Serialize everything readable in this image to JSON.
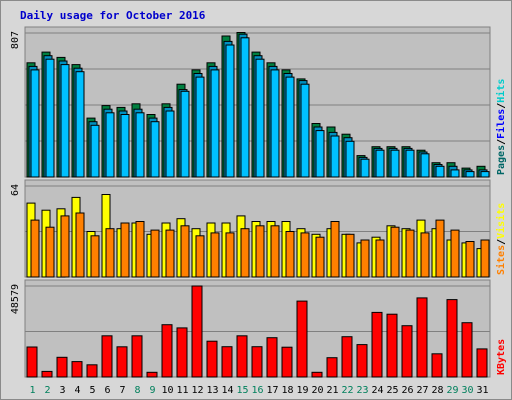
{
  "colors": {
    "pages": "#006666",
    "files": "#0000ff",
    "hits": "#00cccc",
    "pages_bar": "#008040",
    "files_bar": "#00c0ff",
    "visits": "#ffff00",
    "sites": "#ff8000",
    "kbytes": "#ff0000",
    "weekday_label": "#000000",
    "weekend_label": "#00805c",
    "plot_bg": "#c0c0c0",
    "frame_bg": "#d7d7d7",
    "title": "#0000cc"
  },
  "chart_data": {
    "type": "bar",
    "title": "Daily usage for October 2016",
    "categories": [
      "1",
      "2",
      "3",
      "4",
      "5",
      "6",
      "7",
      "8",
      "9",
      "10",
      "11",
      "12",
      "13",
      "14",
      "15",
      "16",
      "17",
      "18",
      "19",
      "20",
      "21",
      "22",
      "23",
      "24",
      "25",
      "26",
      "27",
      "28",
      "29",
      "30",
      "31"
    ],
    "weekend_days": [
      "1",
      "2",
      "8",
      "9",
      "15",
      "16",
      "22",
      "23",
      "29",
      "30"
    ],
    "panels": [
      {
        "ylabel_max": "807",
        "ymax": 807,
        "legend": [
          {
            "text": "Pages",
            "color": "#006666"
          },
          {
            "text": "/",
            "color": "#000000"
          },
          {
            "text": "Files",
            "color": "#0000ff"
          },
          {
            "text": "/",
            "color": "#000000"
          },
          {
            "text": "Hits",
            "color": "#00cccc"
          }
        ],
        "series": [
          {
            "name": "Hits",
            "values": [
              640,
              700,
              670,
              630,
              330,
              400,
              390,
              410,
              350,
              410,
              520,
              600,
              640,
              790,
              810,
              700,
              640,
              600,
              550,
              300,
              280,
              240,
              120,
              170,
              170,
              170,
              150,
              80,
              80,
              50,
              60
            ]
          },
          {
            "name": "Files",
            "values": [
              620,
              680,
              650,
              610,
              310,
              380,
              370,
              380,
              330,
              390,
              490,
              580,
              620,
              760,
              800,
              680,
              620,
              580,
              540,
              280,
              250,
              220,
              110,
              160,
              160,
              160,
              140,
              70,
              60,
              40,
              40
            ]
          },
          {
            "name": "Pages",
            "values": [
              600,
              660,
              630,
              590,
              290,
              360,
              350,
              360,
              310,
              370,
              480,
              560,
              600,
              740,
              780,
              660,
              600,
              560,
              520,
              260,
              230,
              200,
              100,
              150,
              150,
              150,
              130,
              60,
              40,
              30,
              30
            ]
          }
        ]
      },
      {
        "ylabel_max": "64",
        "ymax": 64,
        "legend": [
          {
            "text": "Sites",
            "color": "#ff8000"
          },
          {
            "text": "/",
            "color": "#000000"
          },
          {
            "text": "Visits",
            "color": "#ffff00"
          }
        ],
        "series": [
          {
            "name": "Visits",
            "values": [
              52,
              47,
              48,
              56,
              32,
              58,
              34,
              38,
              30,
              38,
              41,
              34,
              38,
              38,
              43,
              39,
              39,
              39,
              34,
              30,
              34,
              30,
              24,
              28,
              36,
              34,
              40,
              34,
              26,
              24,
              20
            ]
          },
          {
            "name": "Sites",
            "values": [
              40,
              35,
              43,
              45,
              29,
              34,
              38,
              39,
              33,
              33,
              36,
              29,
              31,
              31,
              34,
              36,
              36,
              32,
              31,
              28,
              39,
              30,
              26,
              26,
              35,
              33,
              31,
              40,
              33,
              25,
              26
            ]
          }
        ]
      },
      {
        "ylabel_max": "48579",
        "ymax": 48579,
        "legend": [
          {
            "text": "KBytes",
            "color": "#ff0000"
          }
        ],
        "series": [
          {
            "name": "KBytes",
            "values": [
              16000,
              3000,
              10500,
              8200,
              6500,
              22000,
              16100,
              22000,
              2500,
              27900,
              26200,
              48579,
              19100,
              16200,
              22000,
              16200,
              21000,
              15900,
              40500,
              2500,
              10300,
              21500,
              17300,
              34500,
              33500,
              27400,
              42200,
              12400,
              41300,
              29000,
              15000
            ]
          }
        ]
      }
    ]
  }
}
